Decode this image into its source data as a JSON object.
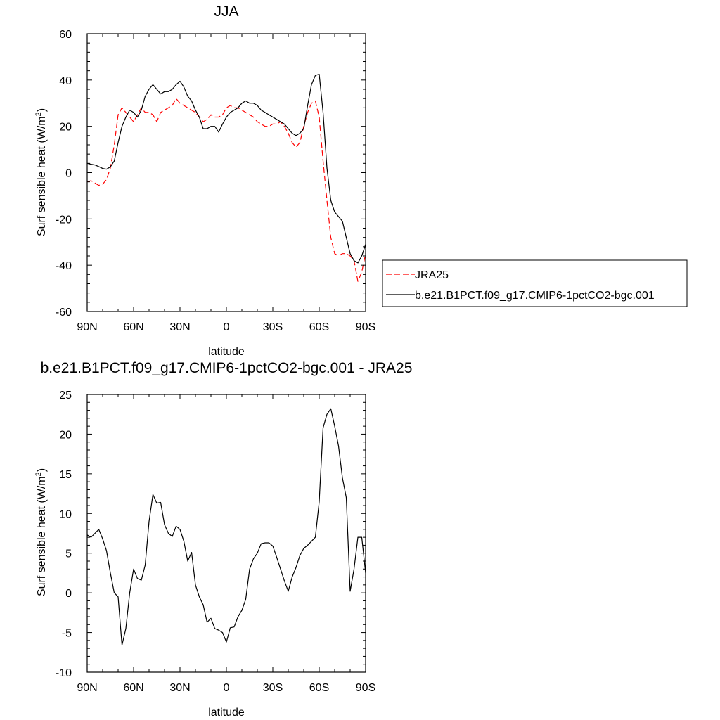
{
  "chart_data": [
    {
      "type": "line",
      "title": "JJA",
      "xlabel": "latitude",
      "ylabel": "Surf sensible heat (W/m²)",
      "ylabel_main": "Surf sensible heat (W/m",
      "ylabel_sup": "2",
      "ylabel_end": ")",
      "xlim": [
        90,
        -90
      ],
      "ylim": [
        -60,
        60
      ],
      "xticks": [
        90,
        60,
        30,
        0,
        -30,
        -60,
        -90
      ],
      "xtick_labels": [
        "90N",
        "60N",
        "30N",
        "0",
        "30S",
        "60S",
        "90S"
      ],
      "yticks": [
        -60,
        -40,
        -20,
        0,
        20,
        40,
        60
      ],
      "ytick_labels": [
        "-60",
        "-40",
        "-20",
        "0",
        "20",
        "40",
        "60"
      ],
      "legend_position": "right",
      "series": [
        {
          "name": "JRA25",
          "color": "#ff0000",
          "dash": "dashed",
          "x": [
            90,
            87.5,
            85,
            82.5,
            80,
            77.5,
            75,
            72.5,
            70,
            67.5,
            65,
            62.5,
            60,
            57.5,
            55,
            52.5,
            50,
            47.5,
            45,
            42.5,
            40,
            37.5,
            35,
            32.5,
            30,
            27.5,
            25,
            22.5,
            20,
            17.5,
            15,
            12.5,
            10,
            7.5,
            5,
            2.5,
            0,
            -2.5,
            -5,
            -7.5,
            -10,
            -12.5,
            -15,
            -17.5,
            -20,
            -22.5,
            -25,
            -27.5,
            -30,
            -32.5,
            -35,
            -37.5,
            -40,
            -42.5,
            -45,
            -47.5,
            -50,
            -52.5,
            -55,
            -57.5,
            -60,
            -62.5,
            -65,
            -67.5,
            -70,
            -72.5,
            -75,
            -77.5,
            -80,
            -82.5,
            -85,
            -87.5,
            -90
          ],
          "y": [
            -4,
            -3.5,
            -4.5,
            -5.5,
            -5,
            -3,
            2,
            12,
            25,
            28,
            26,
            24,
            22,
            25,
            28,
            26,
            26,
            25,
            22,
            26,
            27,
            28,
            29,
            32,
            30,
            29,
            28,
            27,
            26,
            24,
            22,
            23,
            25,
            24,
            24,
            25,
            28,
            29,
            28,
            28,
            27,
            26,
            25,
            24,
            22,
            21,
            20,
            20,
            21,
            21,
            22,
            20,
            17,
            13,
            11,
            13,
            20,
            26,
            30,
            31,
            24,
            5,
            -12,
            -28,
            -35,
            -36,
            -35,
            -35,
            -36,
            -38,
            -47,
            -43,
            -35
          ]
        },
        {
          "name": "b.e21.B1PCT.f09_g17.CMIP6-1pctCO2-bgc.001",
          "color": "#000000",
          "dash": "solid",
          "x": [
            90,
            87.5,
            85,
            82.5,
            80,
            77.5,
            75,
            72.5,
            70,
            67.5,
            65,
            62.5,
            60,
            57.5,
            55,
            52.5,
            50,
            47.5,
            45,
            42.5,
            40,
            37.5,
            35,
            32.5,
            30,
            27.5,
            25,
            22.5,
            20,
            17.5,
            15,
            12.5,
            10,
            7.5,
            5,
            2.5,
            0,
            -2.5,
            -5,
            -7.5,
            -10,
            -12.5,
            -15,
            -17.5,
            -20,
            -22.5,
            -25,
            -27.5,
            -30,
            -32.5,
            -35,
            -37.5,
            -40,
            -42.5,
            -45,
            -47.5,
            -50,
            -52.5,
            -55,
            -57.5,
            -60,
            -62.5,
            -65,
            -67.5,
            -70,
            -72.5,
            -75,
            -77.5,
            -80,
            -82.5,
            -85,
            -87.5,
            -90
          ],
          "y": [
            4,
            3.6,
            3.3,
            2.6,
            1.8,
            1.5,
            2.5,
            5,
            13,
            20,
            24,
            27,
            26,
            24,
            27,
            33,
            36,
            38,
            36,
            34,
            35,
            35,
            36,
            38,
            39.5,
            37,
            33,
            31,
            27,
            24,
            19,
            19,
            20,
            20,
            17.5,
            21,
            24,
            26,
            27,
            28,
            30,
            31,
            30,
            30,
            29,
            27,
            26,
            25,
            24,
            23,
            22,
            21,
            19,
            17,
            16,
            17,
            19,
            29,
            38,
            42,
            42.5,
            26,
            2,
            -12,
            -17,
            -19,
            -21,
            -28,
            -35,
            -38,
            -39,
            -36,
            -31
          ]
        }
      ]
    },
    {
      "type": "line",
      "title": "b.e21.B1PCT.f09_g17.CMIP6-1pctCO2-bgc.001 - JRA25",
      "xlabel": "latitude",
      "ylabel": "Surf sensible heat (W/m²)",
      "ylabel_main": "Surf sensible heat (W/m",
      "ylabel_sup": "2",
      "ylabel_end": ")",
      "xlim": [
        90,
        -90
      ],
      "ylim": [
        -10,
        25
      ],
      "xticks": [
        90,
        60,
        30,
        0,
        -30,
        -60,
        -90
      ],
      "xtick_labels": [
        "90N",
        "60N",
        "30N",
        "0",
        "30S",
        "60S",
        "90S"
      ],
      "yticks": [
        -10,
        -5,
        0,
        5,
        10,
        15,
        20,
        25
      ],
      "ytick_labels": [
        "-10",
        "-5",
        "0",
        "5",
        "10",
        "15",
        "20",
        "25"
      ],
      "series": [
        {
          "color": "#000000",
          "dash": "solid",
          "x": [
            90,
            87.5,
            85,
            82.5,
            80,
            77.5,
            75,
            72.5,
            70,
            67.5,
            65,
            62.5,
            60,
            57.5,
            55,
            52.5,
            50,
            47.5,
            45,
            42.5,
            40,
            37.5,
            35,
            32.5,
            30,
            27.5,
            25,
            22.5,
            20,
            17.5,
            15,
            12.5,
            10,
            7.5,
            5,
            2.5,
            0,
            -2.5,
            -5,
            -7.5,
            -10,
            -12.5,
            -15,
            -17.5,
            -20,
            -22.5,
            -25,
            -27.5,
            -30,
            -32.5,
            -35,
            -37.5,
            -40,
            -42.5,
            -45,
            -47.5,
            -50,
            -52.5,
            -55,
            -57.5,
            -60,
            -62.5,
            -65,
            -67.5,
            -70,
            -72.5,
            -75,
            -77.5,
            -80,
            -82.5,
            -85,
            -87.5,
            -90
          ],
          "y": [
            7.3,
            7.0,
            7.5,
            8.0,
            6.8,
            5.3,
            2.5,
            0.0,
            -0.5,
            -6.6,
            -4.5,
            0.0,
            3.0,
            1.8,
            1.6,
            3.5,
            9.0,
            12.4,
            11.3,
            11.4,
            8.6,
            7.5,
            7.1,
            8.4,
            8.0,
            6.5,
            4.0,
            5.1,
            1.0,
            -0.5,
            -1.5,
            -3.7,
            -3.2,
            -4.5,
            -4.7,
            -5.0,
            -6.2,
            -4.4,
            -4.3,
            -3.0,
            -2.2,
            -0.8,
            3.0,
            4.3,
            5.0,
            6.2,
            6.3,
            6.3,
            5.9,
            4.5,
            3.0,
            1.5,
            0.2,
            2.0,
            3.2,
            4.7,
            5.6,
            6.0,
            6.5,
            7.0,
            11.5,
            20.8,
            22.5,
            23.2,
            21.0,
            18.5,
            14.5,
            12.0,
            0.2,
            3.0,
            7.0,
            7.0,
            2.5
          ]
        }
      ]
    }
  ]
}
